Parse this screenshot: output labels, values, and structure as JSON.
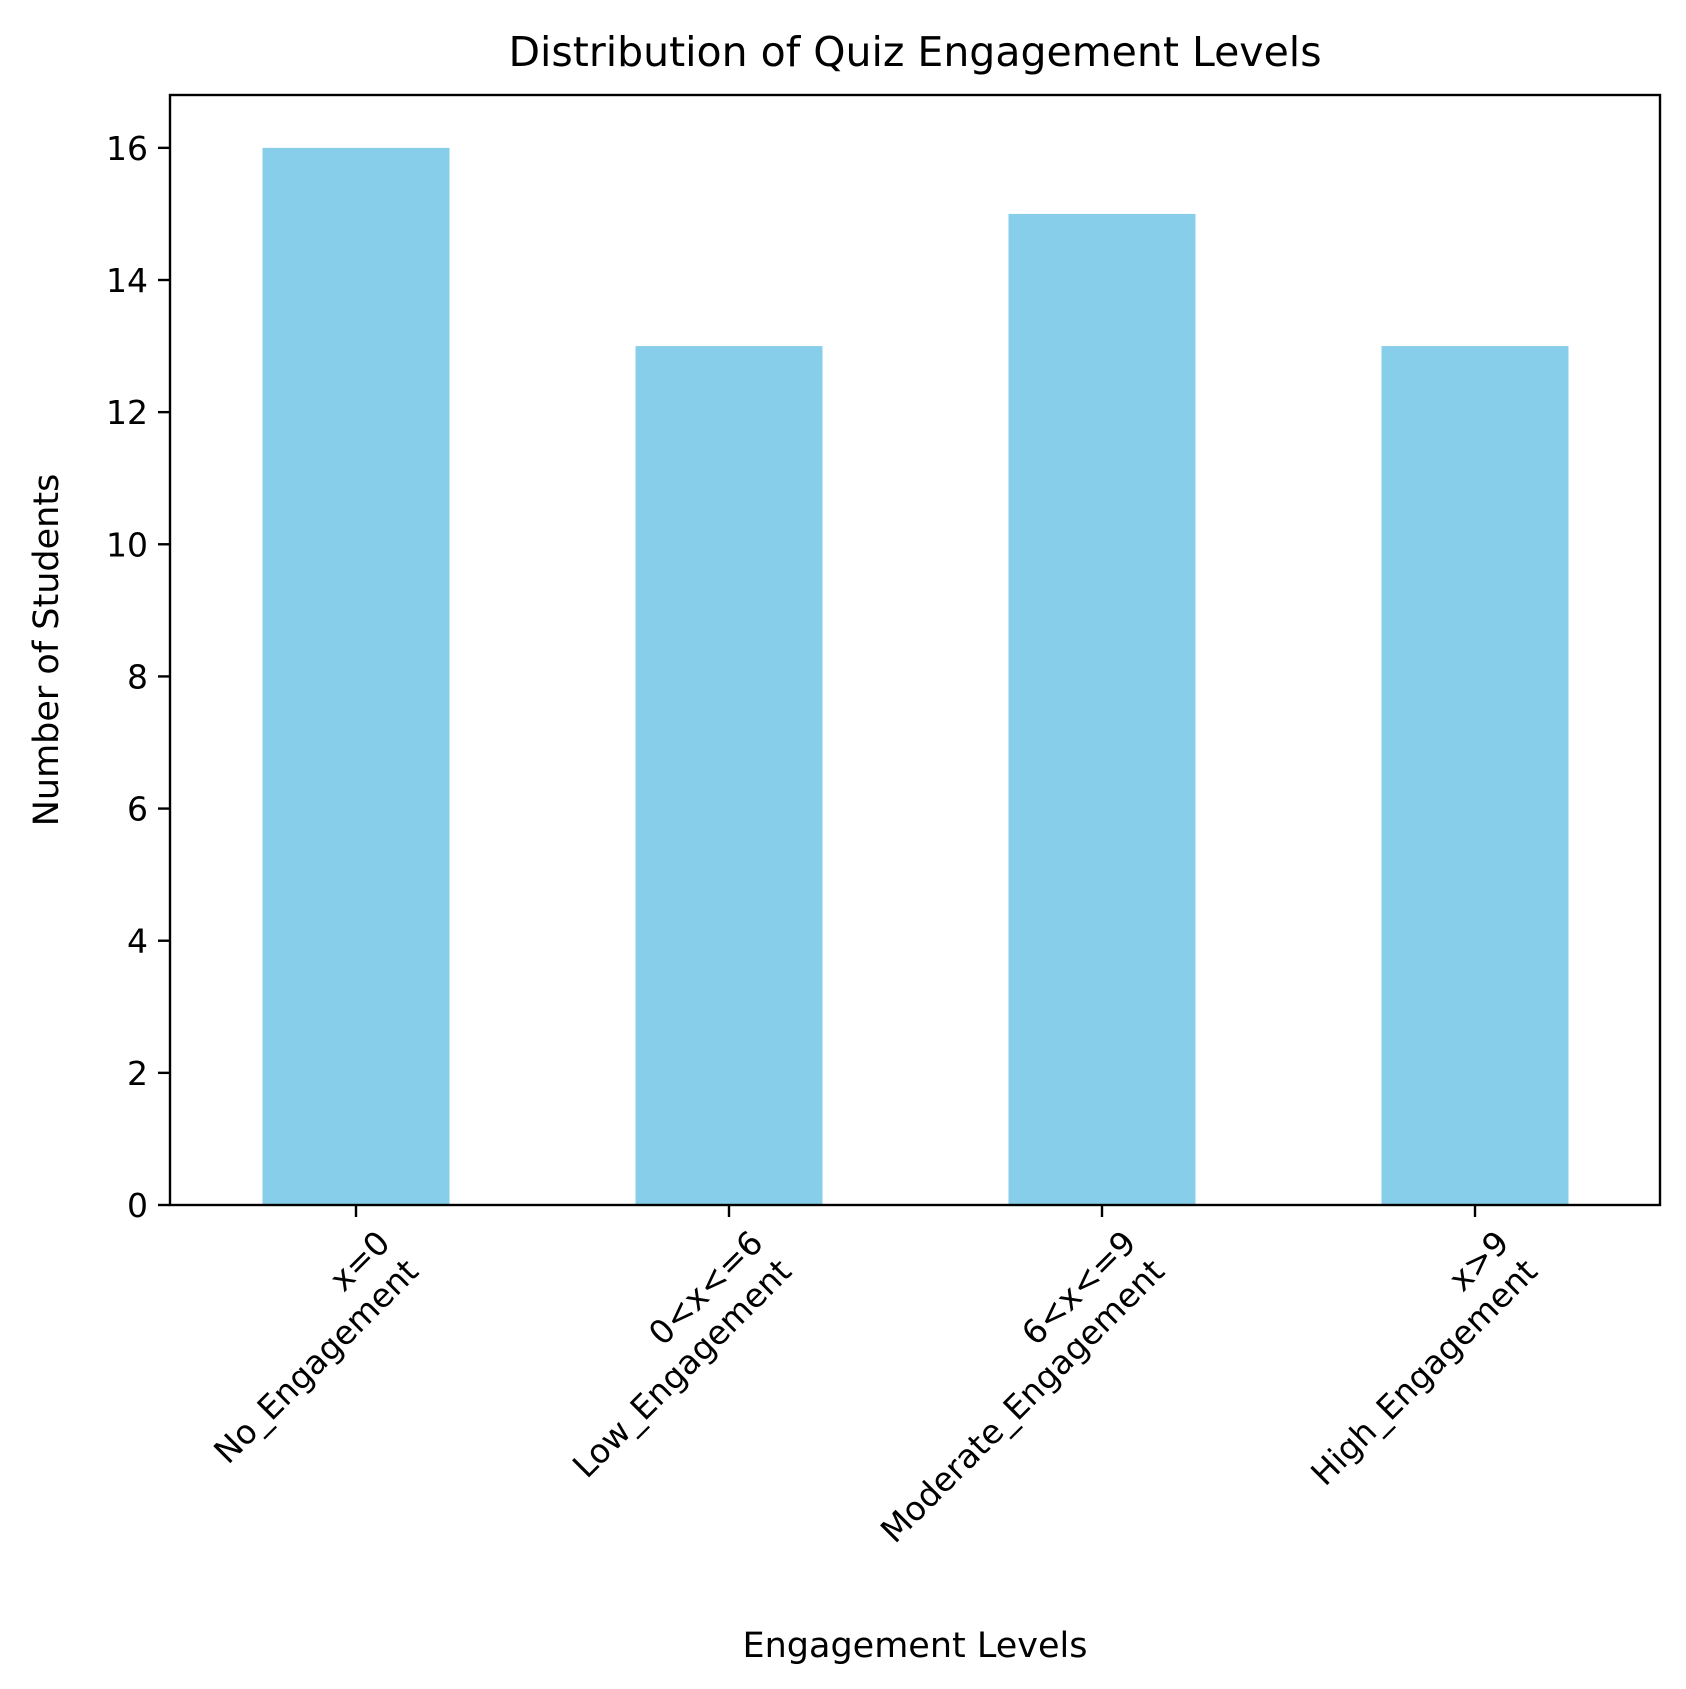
{
  "chart_data": {
    "type": "bar",
    "title": "Distribution of Quiz Engagement Levels",
    "xlabel": "Engagement Levels",
    "ylabel": "Number of Students",
    "categories": [
      [
        "x=0",
        "No_Engagement"
      ],
      [
        "0<x<=6",
        "Low_Engagement"
      ],
      [
        "6<x<=9",
        "Moderate_Engagement"
      ],
      [
        "x>9",
        "High_Engagement"
      ]
    ],
    "values": [
      16,
      13,
      15,
      13
    ],
    "ylim": [
      0,
      16.8
    ],
    "yticks": [
      0,
      2,
      4,
      6,
      8,
      10,
      12,
      14,
      16
    ],
    "bar_color": "#87CEEB",
    "grid": false,
    "legend": "none",
    "xtick_rotation_deg": 45
  }
}
